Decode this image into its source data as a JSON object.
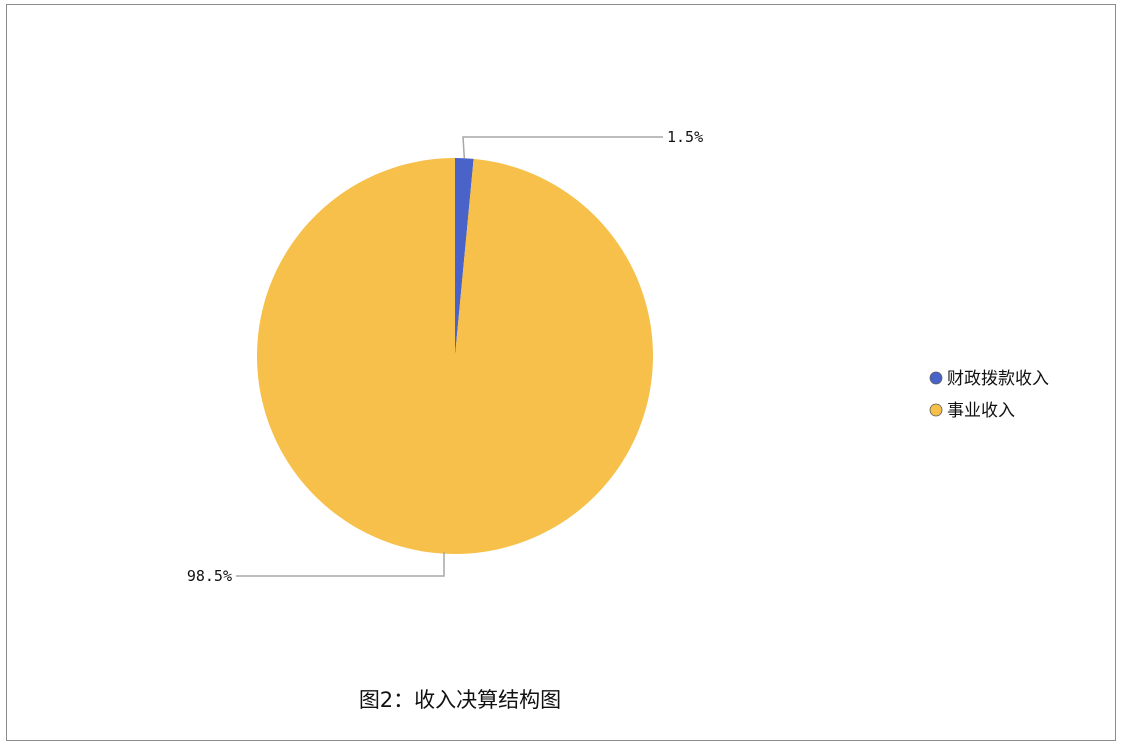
{
  "chart_data": {
    "type": "pie",
    "title": "图2：收入决算结构图",
    "slices": [
      {
        "label": "财政拨款收入",
        "value": 1.5,
        "display": "1.5%",
        "color": "#4a63c8"
      },
      {
        "label": "事业收入",
        "value": 98.5,
        "display": "98.5%",
        "color": "#f6c04a"
      }
    ],
    "legend_position": "right",
    "start_angle_deg": 0,
    "direction": "clockwise"
  }
}
